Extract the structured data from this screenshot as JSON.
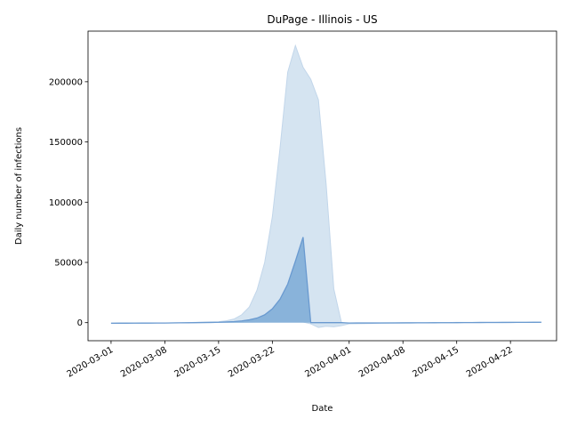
{
  "chart_data": {
    "type": "area",
    "title": "DuPage - Illinois - US",
    "xlabel": "Date",
    "ylabel": "Daily number of infections",
    "x_start": "2020-03-01",
    "x_end": "2020-04-26",
    "xlim": [
      "2020-02-27",
      "2020-04-28"
    ],
    "ylim": [
      -15000,
      242000
    ],
    "x_ticks": [
      "2020-03-01",
      "2020-03-08",
      "2020-03-15",
      "2020-03-22",
      "2020-04-01",
      "2020-04-08",
      "2020-04-15",
      "2020-04-22"
    ],
    "y_ticks": [
      0,
      50000,
      100000,
      150000,
      200000
    ],
    "y_tick_labels": [
      "0",
      "50000",
      "100000",
      "150000",
      "200000"
    ],
    "grid": false,
    "legend": "none",
    "series": [
      {
        "role": "band",
        "color": "#d5e4f1",
        "points": [
          {
            "date": "2020-03-01",
            "low": -500,
            "high": -500
          },
          {
            "date": "2020-03-08",
            "low": -300,
            "high": -300
          },
          {
            "date": "2020-03-12",
            "low": 0,
            "high": 200
          },
          {
            "date": "2020-03-15",
            "low": 100,
            "high": 800
          },
          {
            "date": "2020-03-16",
            "low": 150,
            "high": 1500
          },
          {
            "date": "2020-03-17",
            "low": 200,
            "high": 3000
          },
          {
            "date": "2020-03-18",
            "low": 300,
            "high": 6500
          },
          {
            "date": "2020-03-19",
            "low": 400,
            "high": 13000
          },
          {
            "date": "2020-03-20",
            "low": 500,
            "high": 27000
          },
          {
            "date": "2020-03-21",
            "low": 600,
            "high": 50000
          },
          {
            "date": "2020-03-22",
            "low": 800,
            "high": 88000
          },
          {
            "date": "2020-03-23",
            "low": 1000,
            "high": 145000
          },
          {
            "date": "2020-03-24",
            "low": 1000,
            "high": 208000
          },
          {
            "date": "2020-03-25",
            "low": 1000,
            "high": 230000
          },
          {
            "date": "2020-03-26",
            "low": 500,
            "high": 212000
          },
          {
            "date": "2020-03-27",
            "low": -1000,
            "high": 202000
          },
          {
            "date": "2020-03-28",
            "low": -4000,
            "high": 185000
          },
          {
            "date": "2020-03-29",
            "low": -3000,
            "high": 115000
          },
          {
            "date": "2020-03-30",
            "low": -3500,
            "high": 28000
          },
          {
            "date": "2020-03-31",
            "low": -2500,
            "high": 0
          },
          {
            "date": "2020-04-01",
            "low": -1000,
            "high": -500
          },
          {
            "date": "2020-04-08",
            "low": -300,
            "high": 0
          },
          {
            "date": "2020-04-15",
            "low": 0,
            "high": 200
          },
          {
            "date": "2020-04-22",
            "low": 100,
            "high": 400
          },
          {
            "date": "2020-04-26",
            "low": 100,
            "high": 500
          }
        ]
      },
      {
        "role": "mean",
        "color": "#6a9ad0",
        "fill": "#85b0d8",
        "points": [
          {
            "date": "2020-03-01",
            "value": -500
          },
          {
            "date": "2020-03-08",
            "value": -300
          },
          {
            "date": "2020-03-12",
            "value": 0
          },
          {
            "date": "2020-03-15",
            "value": 300
          },
          {
            "date": "2020-03-16",
            "value": 600
          },
          {
            "date": "2020-03-17",
            "value": 900
          },
          {
            "date": "2020-03-18",
            "value": 1400
          },
          {
            "date": "2020-03-19",
            "value": 2300
          },
          {
            "date": "2020-03-20",
            "value": 3800
          },
          {
            "date": "2020-03-21",
            "value": 6500
          },
          {
            "date": "2020-03-22",
            "value": 11500
          },
          {
            "date": "2020-03-23",
            "value": 19500
          },
          {
            "date": "2020-03-24",
            "value": 32000
          },
          {
            "date": "2020-03-25",
            "value": 51000
          },
          {
            "date": "2020-03-26",
            "value": 71000
          },
          {
            "date": "2020-03-27",
            "value": 0
          },
          {
            "date": "2020-03-31",
            "value": 0
          },
          {
            "date": "2020-04-01",
            "value": -300
          },
          {
            "date": "2020-04-08",
            "value": -200
          },
          {
            "date": "2020-04-15",
            "value": 0
          },
          {
            "date": "2020-04-22",
            "value": 200
          },
          {
            "date": "2020-04-26",
            "value": 300
          }
        ]
      }
    ]
  }
}
